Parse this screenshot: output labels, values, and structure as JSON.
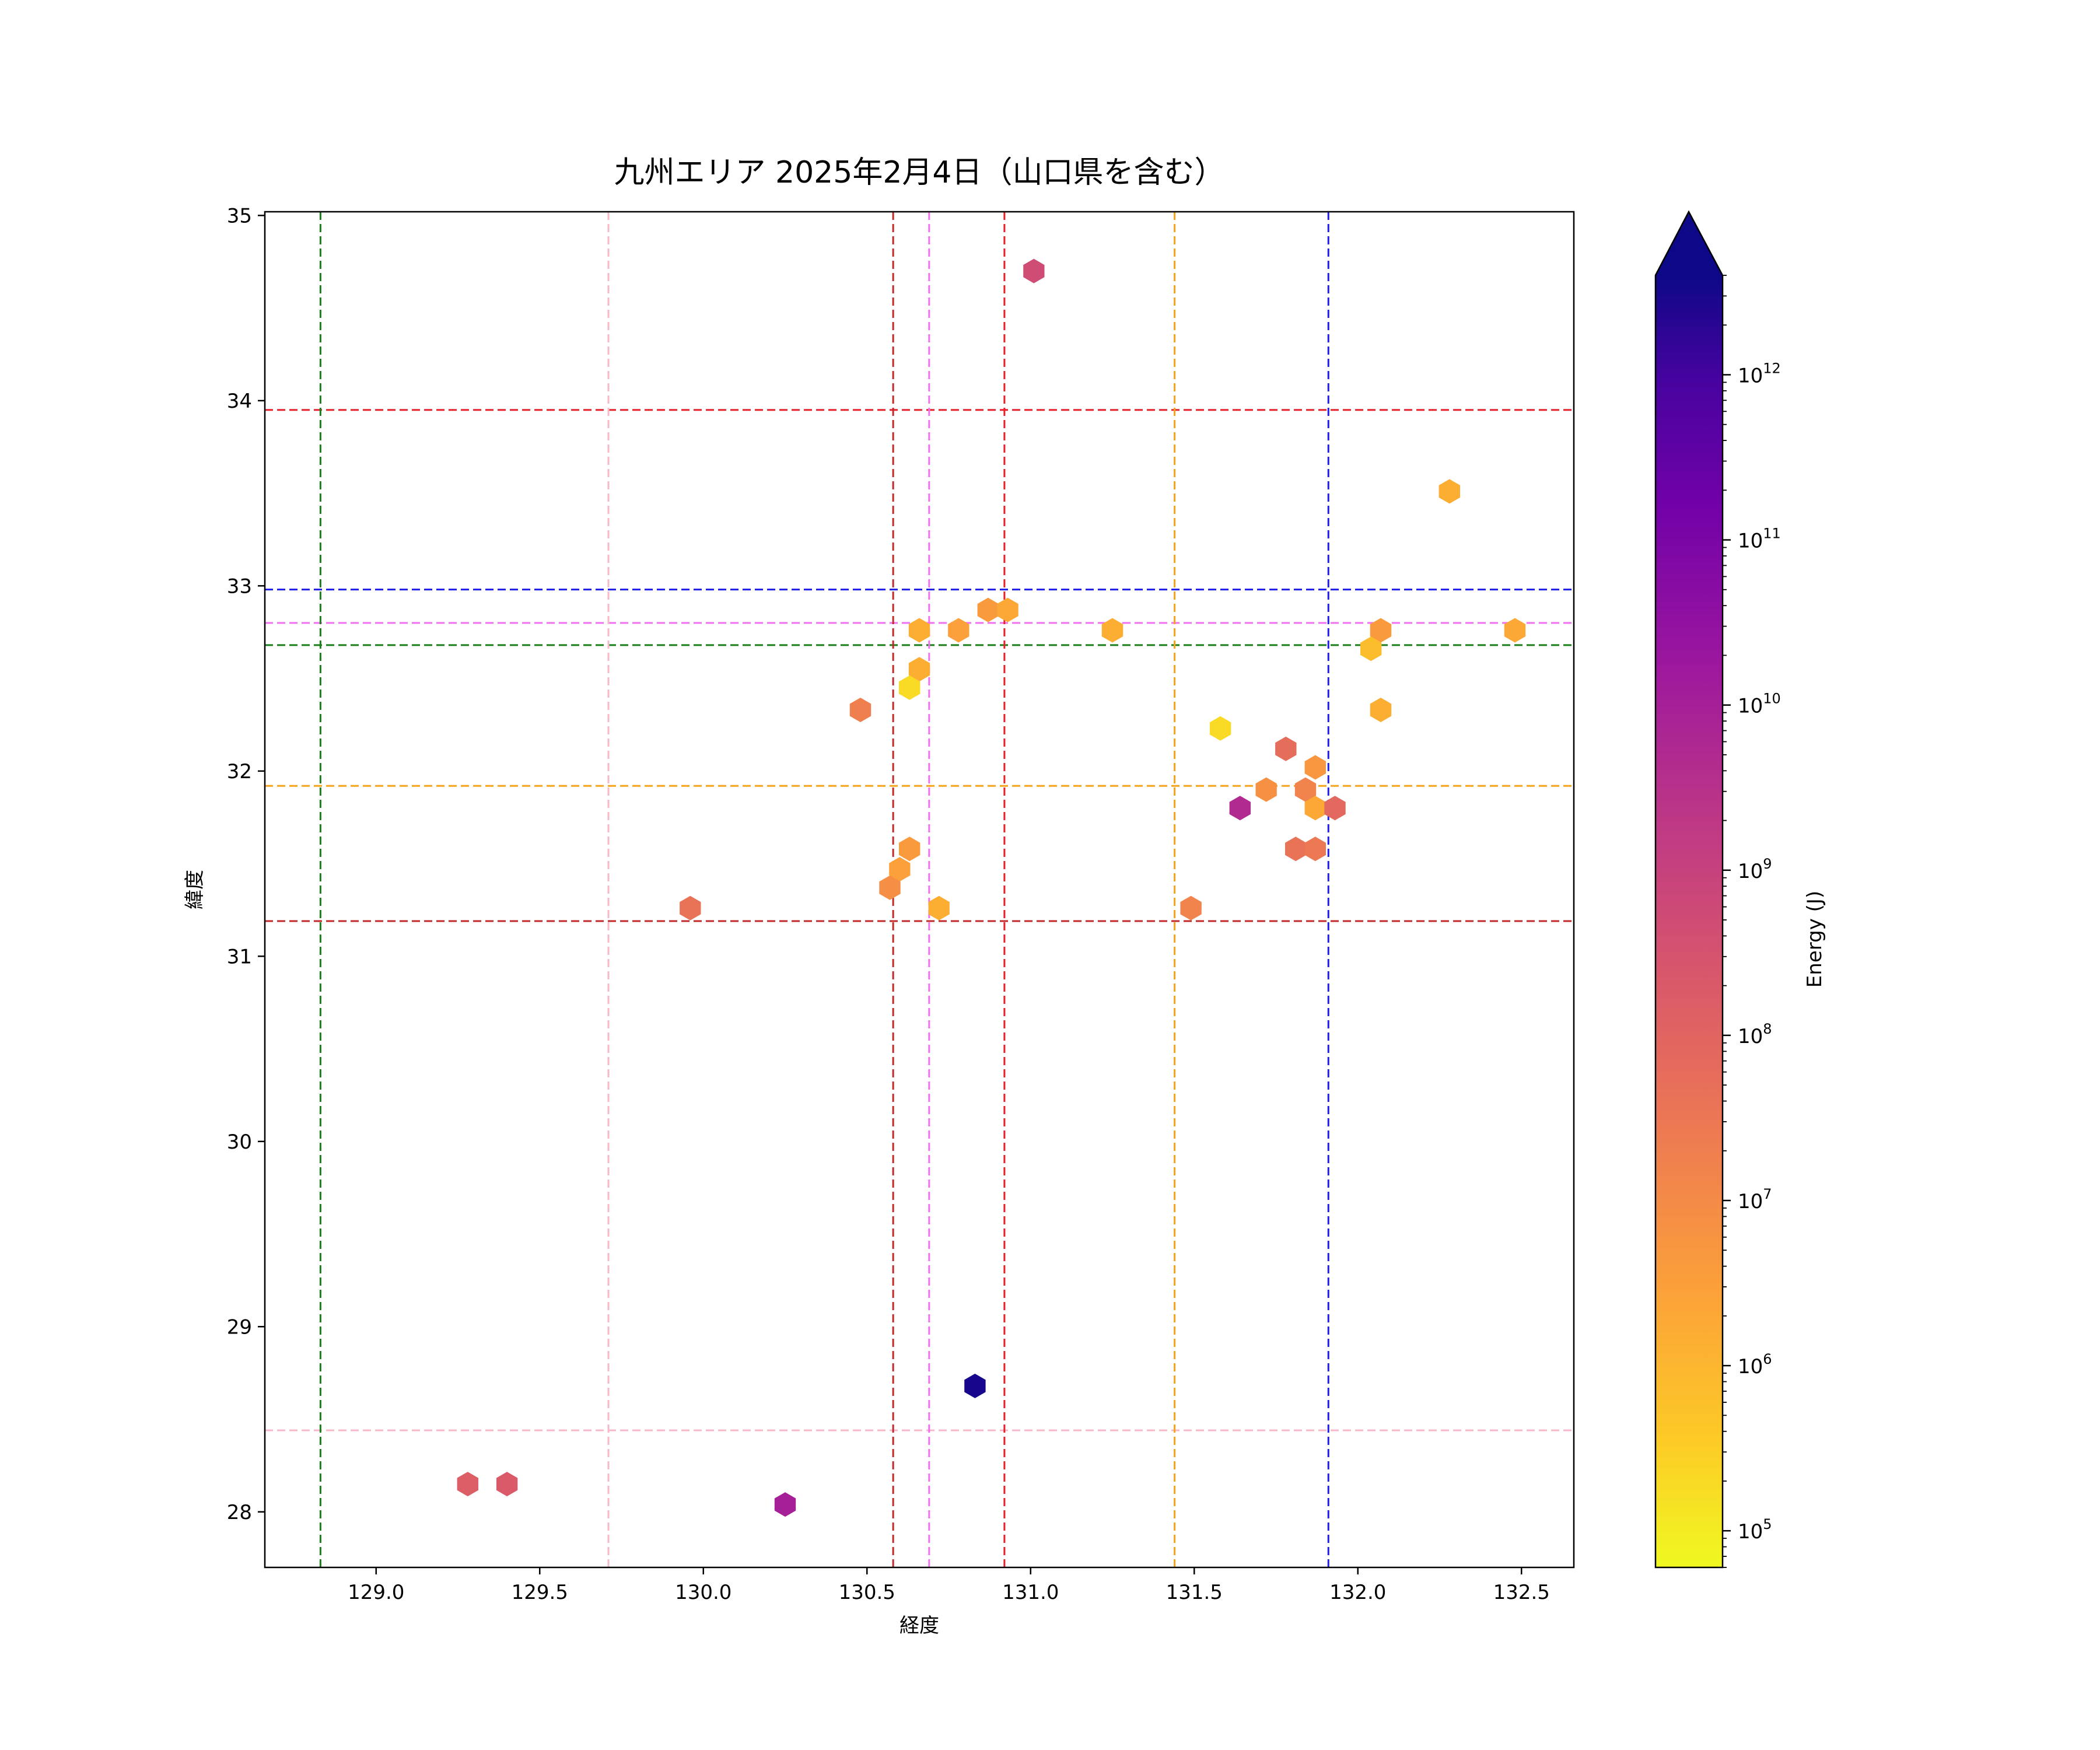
{
  "chart_data": {
    "type": "scatter",
    "title": "九州エリア 2025年2月4日（山口県を含む）",
    "xlabel": "経度",
    "ylabel": "緯度",
    "xlim": [
      128.66,
      132.66
    ],
    "ylim": [
      27.7,
      35.02
    ],
    "xticks": [
      "129.0",
      "129.5",
      "130.0",
      "130.5",
      "131.0",
      "131.5",
      "132.0",
      "132.5"
    ],
    "yticks": [
      "28",
      "29",
      "30",
      "31",
      "32",
      "33",
      "34",
      "35"
    ],
    "grid": false,
    "colorbar": {
      "label": "Energy (J)",
      "scale": "log",
      "colormap": "plasma_r",
      "range": [
        60000,
        4000000000000
      ],
      "extend": "max",
      "ticks": [
        {
          "value": 100000,
          "base": "10",
          "exp": "5"
        },
        {
          "value": 1000000,
          "base": "10",
          "exp": "6"
        },
        {
          "value": 10000000,
          "base": "10",
          "exp": "7"
        },
        {
          "value": 100000000,
          "base": "10",
          "exp": "8"
        },
        {
          "value": 1000000000,
          "base": "10",
          "exp": "9"
        },
        {
          "value": 10000000000,
          "base": "10",
          "exp": "10"
        },
        {
          "value": 100000000000,
          "base": "10",
          "exp": "11"
        },
        {
          "value": 1000000000000,
          "base": "10",
          "exp": "12"
        }
      ]
    },
    "hlines": [
      {
        "y": 33.95,
        "color": "#e8202a"
      },
      {
        "y": 32.98,
        "color": "#1e1ee8"
      },
      {
        "y": 32.8,
        "color": "#f070f0"
      },
      {
        "y": 32.68,
        "color": "#1a7f1a"
      },
      {
        "y": 31.92,
        "color": "#f5a31a"
      },
      {
        "y": 31.19,
        "color": "#c0282a"
      },
      {
        "y": 28.44,
        "color": "#f7b8c8"
      }
    ],
    "vlines": [
      {
        "x": 128.83,
        "color": "#1a7f1a"
      },
      {
        "x": 129.71,
        "color": "#f7b8c8"
      },
      {
        "x": 130.58,
        "color": "#c0282a"
      },
      {
        "x": 130.69,
        "color": "#f070f0"
      },
      {
        "x": 130.92,
        "color": "#e8202a"
      },
      {
        "x": 131.44,
        "color": "#f5a31a"
      },
      {
        "x": 131.91,
        "color": "#1e1ee8"
      }
    ],
    "points": [
      {
        "x": 131.01,
        "y": 34.7,
        "energy": 500000000
      },
      {
        "x": 132.28,
        "y": 33.51,
        "energy": 1500000
      },
      {
        "x": 130.87,
        "y": 32.87,
        "energy": 4000000
      },
      {
        "x": 130.93,
        "y": 32.87,
        "energy": 2000000
      },
      {
        "x": 130.66,
        "y": 32.76,
        "energy": 1500000
      },
      {
        "x": 130.78,
        "y": 32.76,
        "energy": 3000000
      },
      {
        "x": 131.25,
        "y": 32.76,
        "energy": 1500000
      },
      {
        "x": 132.07,
        "y": 32.76,
        "energy": 4000000
      },
      {
        "x": 132.48,
        "y": 32.76,
        "energy": 2000000
      },
      {
        "x": 132.04,
        "y": 32.66,
        "energy": 700000
      },
      {
        "x": 130.66,
        "y": 32.55,
        "energy": 1500000
      },
      {
        "x": 130.63,
        "y": 32.45,
        "energy": 200000
      },
      {
        "x": 130.48,
        "y": 32.33,
        "energy": 20000000
      },
      {
        "x": 132.07,
        "y": 32.33,
        "energy": 1500000
      },
      {
        "x": 131.58,
        "y": 32.23,
        "energy": 200000
      },
      {
        "x": 131.78,
        "y": 32.12,
        "energy": 60000000
      },
      {
        "x": 131.87,
        "y": 32.02,
        "energy": 5000000
      },
      {
        "x": 131.72,
        "y": 31.9,
        "energy": 7000000
      },
      {
        "x": 131.84,
        "y": 31.9,
        "energy": 15000000
      },
      {
        "x": 131.64,
        "y": 31.8,
        "energy": 5000000000
      },
      {
        "x": 131.87,
        "y": 31.8,
        "energy": 2000000
      },
      {
        "x": 131.93,
        "y": 31.8,
        "energy": 80000000
      },
      {
        "x": 130.63,
        "y": 31.58,
        "energy": 4000000
      },
      {
        "x": 131.81,
        "y": 31.58,
        "energy": 40000000
      },
      {
        "x": 131.87,
        "y": 31.58,
        "energy": 30000000
      },
      {
        "x": 130.6,
        "y": 31.47,
        "energy": 3000000
      },
      {
        "x": 130.57,
        "y": 31.37,
        "energy": 8000000
      },
      {
        "x": 129.96,
        "y": 31.26,
        "energy": 40000000
      },
      {
        "x": 130.72,
        "y": 31.26,
        "energy": 1500000
      },
      {
        "x": 131.49,
        "y": 31.26,
        "energy": 15000000
      },
      {
        "x": 130.83,
        "y": 28.68,
        "energy": 3000000000000
      },
      {
        "x": 129.28,
        "y": 28.15,
        "energy": 150000000
      },
      {
        "x": 129.4,
        "y": 28.15,
        "energy": 200000000
      },
      {
        "x": 130.25,
        "y": 28.04,
        "energy": 10000000000
      }
    ]
  }
}
